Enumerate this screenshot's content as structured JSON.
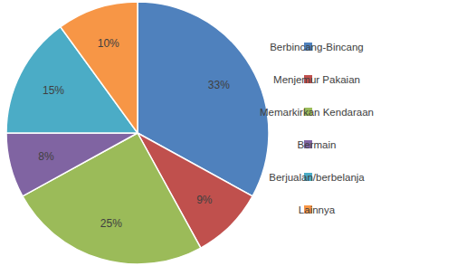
{
  "chart_data": {
    "type": "pie",
    "categories": [
      "Berbincang-Bincang",
      "Menjemur Pakaian",
      "Memarkirkan Kendaraan",
      "Bermain",
      "Berjualan/berbelanja",
      "Lainnya"
    ],
    "values": [
      33,
      9,
      25,
      8,
      15,
      10
    ],
    "value_labels": [
      "33%",
      "9%",
      "25%",
      "8%",
      "15%",
      "10%"
    ],
    "colors": [
      "#4F81BD",
      "#C0504D",
      "#9BBB59",
      "#8064A2",
      "#4BACC6",
      "#F79646"
    ],
    "data_labels": true,
    "legend": "right"
  }
}
